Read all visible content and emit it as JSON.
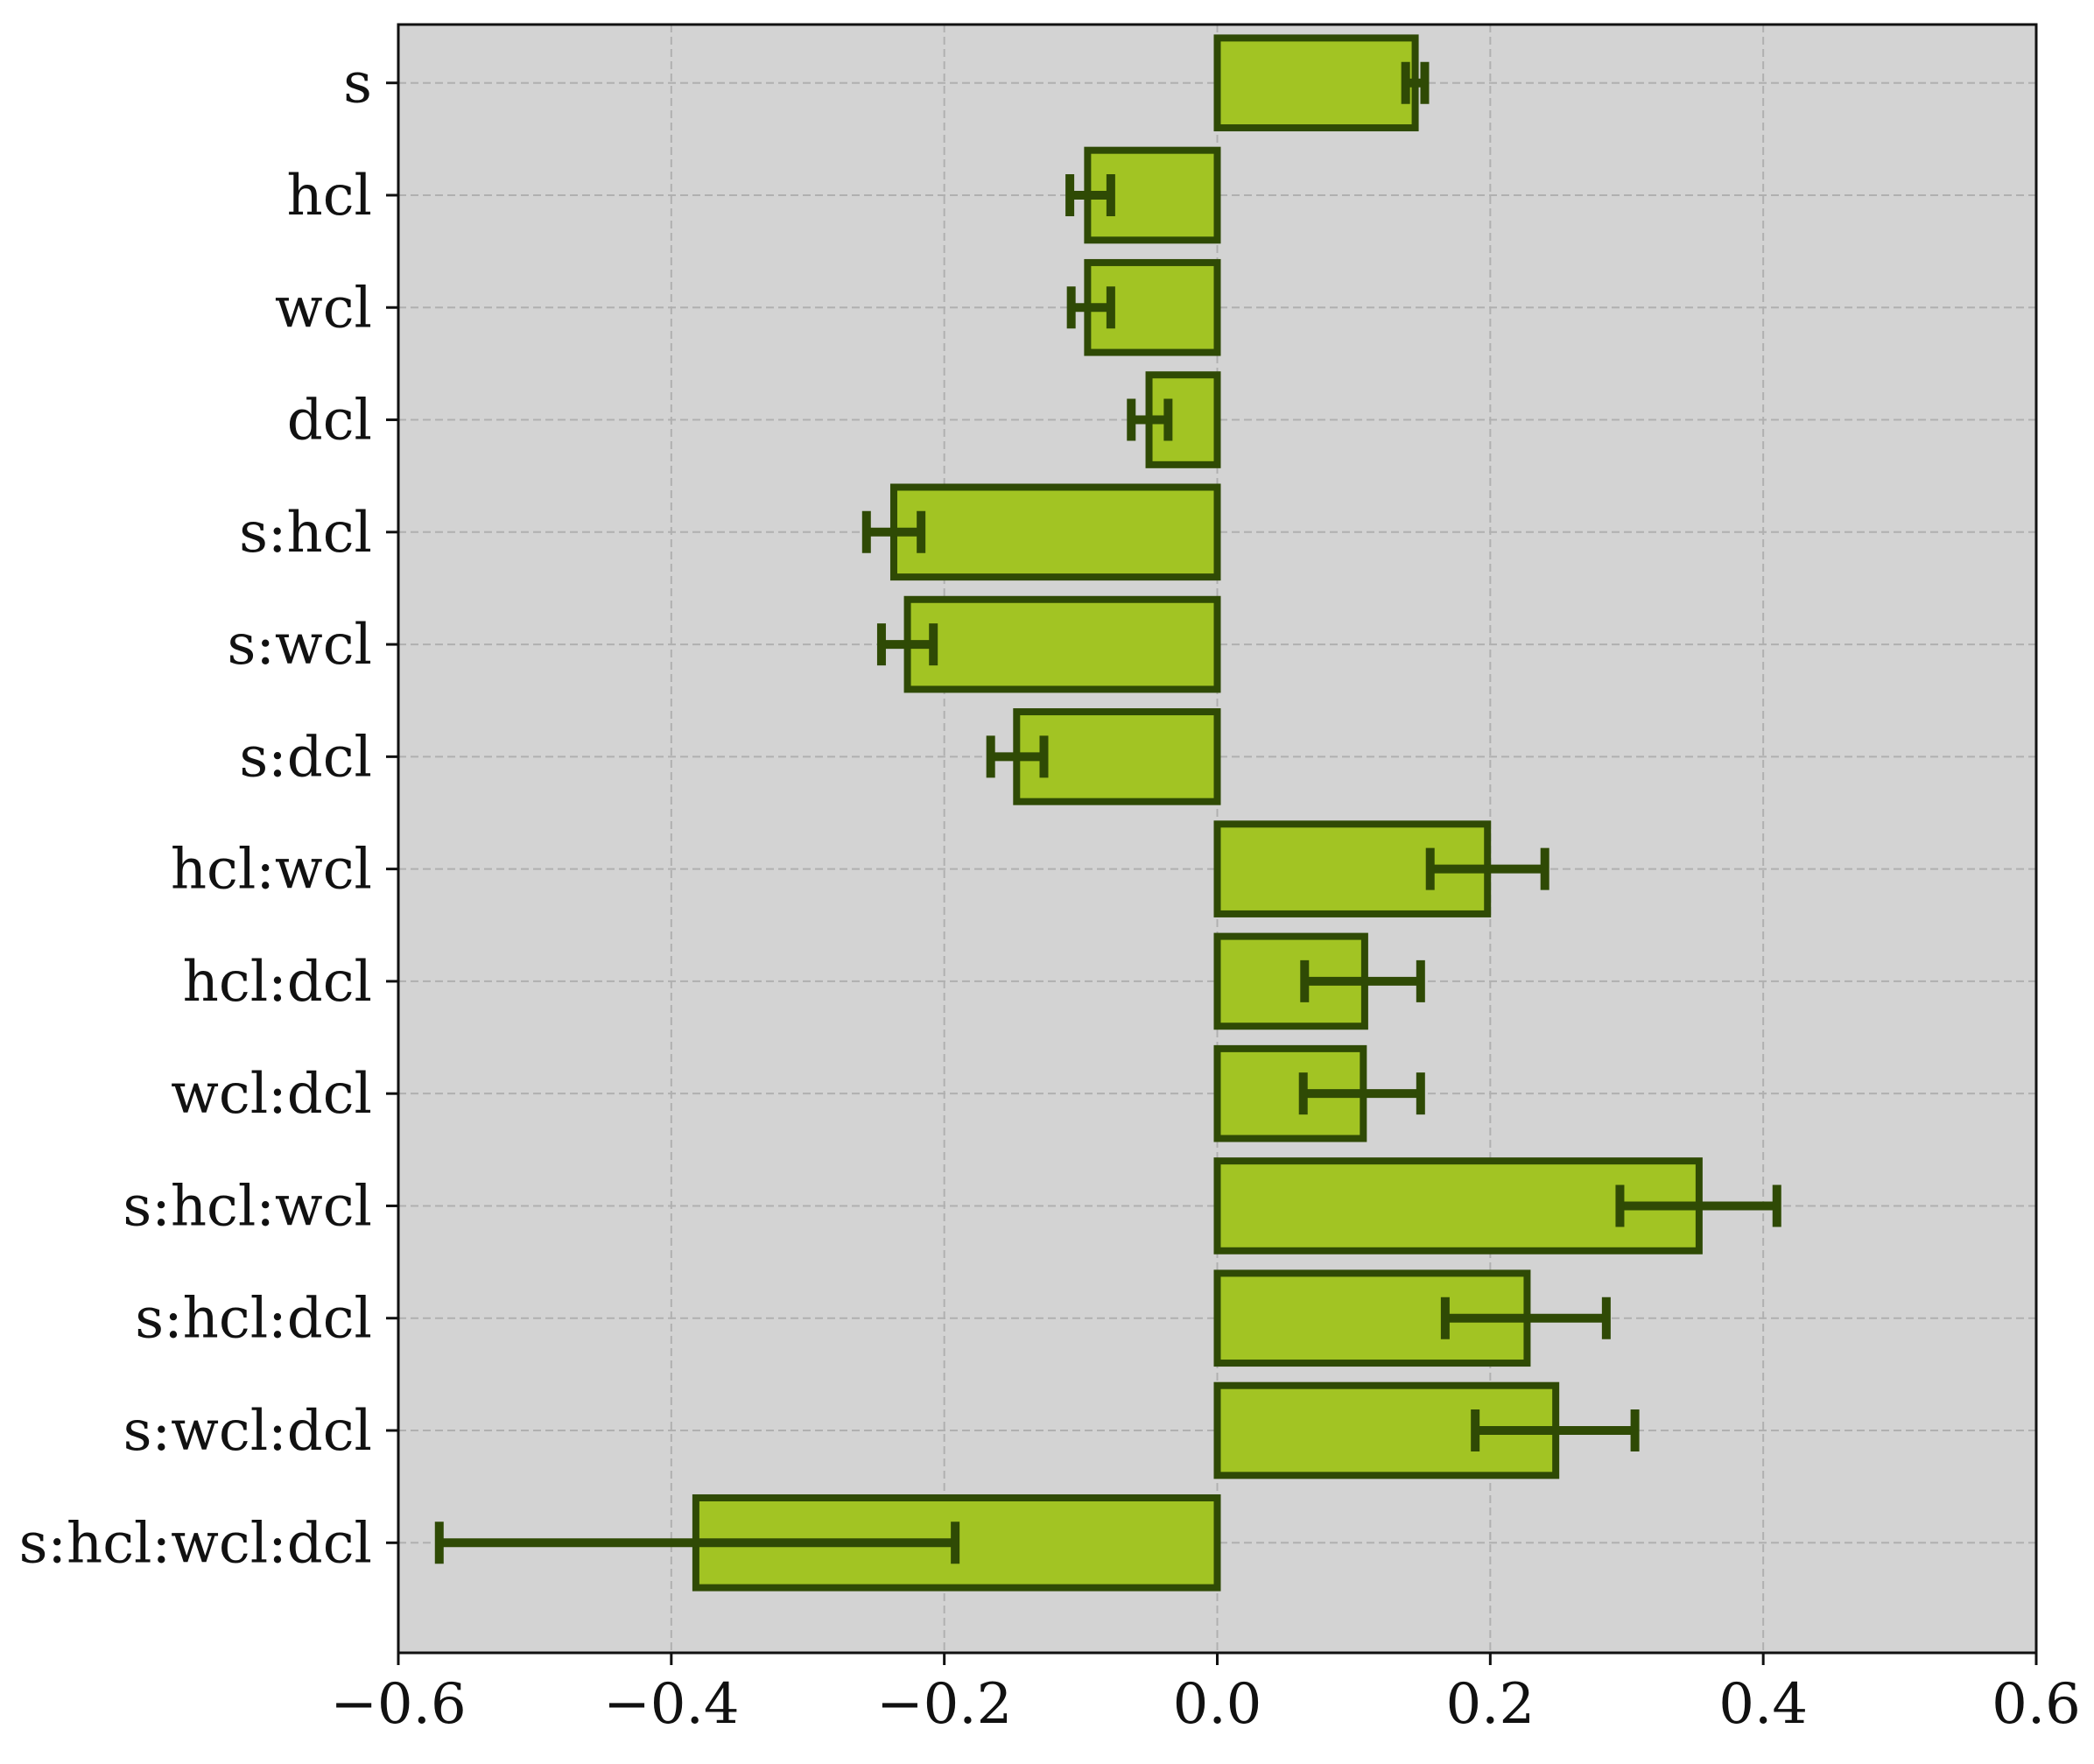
{
  "chart_data": {
    "type": "bar",
    "orientation": "horizontal",
    "title": "",
    "xlabel": "",
    "ylabel": "",
    "categories": [
      "s",
      "hcl",
      "wcl",
      "dcl",
      "s:hcl",
      "s:wcl",
      "s:dcl",
      "hcl:wcl",
      "hcl:dcl",
      "wcl:dcl",
      "s:hcl:wcl",
      "s:hcl:dcl",
      "s:wcl:dcl",
      "s:hcl:wcl:dcl"
    ],
    "values": [
      0.145,
      -0.095,
      -0.095,
      -0.05,
      -0.237,
      -0.227,
      -0.147,
      0.198,
      0.108,
      0.107,
      0.353,
      0.227,
      0.248,
      -0.382
    ],
    "error_low": [
      0.138,
      -0.108,
      -0.107,
      -0.063,
      -0.257,
      -0.246,
      -0.166,
      0.156,
      0.064,
      0.063,
      0.295,
      0.167,
      0.189,
      -0.57
    ],
    "error_high": [
      0.152,
      -0.078,
      -0.078,
      -0.036,
      -0.217,
      -0.208,
      -0.127,
      0.24,
      0.149,
      0.149,
      0.41,
      0.285,
      0.306,
      -0.192
    ],
    "xlim": [
      -0.6,
      0.6
    ],
    "xticks": [
      -0.6,
      -0.4,
      -0.2,
      0.0,
      0.2,
      0.4,
      0.6
    ],
    "xtick_labels": [
      "−0.6",
      "−0.4",
      "−0.2",
      "0.0",
      "0.2",
      "0.4",
      "0.6"
    ],
    "grid": true,
    "grid_style": "dashed",
    "colors": {
      "bar_fill": "#a2c423",
      "bar_edge": "#2f4a05",
      "error_bar": "#2f4a05",
      "plot_background": "#d3d3d3",
      "grid": "#b0b0b0"
    }
  }
}
